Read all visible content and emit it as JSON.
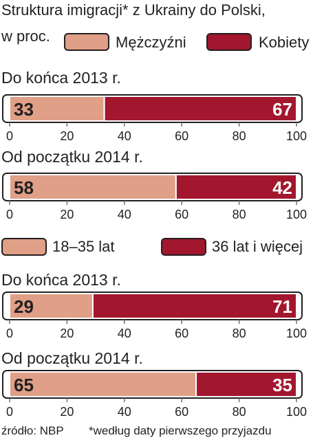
{
  "header": {
    "title_line1": "Struktura imigracji* z Ukrainy do Polski,",
    "title_line2": "w proc."
  },
  "colors": {
    "light": "#e09f87",
    "dark": "#a3172e",
    "ink": "#231f20",
    "axis": "#6d6e71"
  },
  "legends": [
    {
      "light_label": "Mężczyźni",
      "dark_label": "Kobiety"
    },
    {
      "light_label": "18–35 lat",
      "dark_label": "36 lat i więcej"
    }
  ],
  "chart_data": [
    {
      "type": "bar",
      "title": "Do końca 2013 r.",
      "stacked": true,
      "xlim": [
        0,
        100
      ],
      "x_ticks": [
        "0",
        "20",
        "40",
        "60",
        "80",
        "100"
      ],
      "series": [
        {
          "name": "Mężczyźni",
          "values": [
            33
          ]
        },
        {
          "name": "Kobiety",
          "values": [
            67
          ]
        }
      ]
    },
    {
      "type": "bar",
      "title": "Od początku 2014 r.",
      "stacked": true,
      "xlim": [
        0,
        100
      ],
      "x_ticks": [
        "0",
        "20",
        "40",
        "60",
        "80",
        "100"
      ],
      "series": [
        {
          "name": "Mężczyźni",
          "values": [
            58
          ]
        },
        {
          "name": "Kobiety",
          "values": [
            42
          ]
        }
      ]
    },
    {
      "type": "bar",
      "title": "Do końca 2013 r.",
      "stacked": true,
      "xlim": [
        0,
        100
      ],
      "x_ticks": [
        "0",
        "20",
        "40",
        "60",
        "80",
        "100"
      ],
      "series": [
        {
          "name": "18–35 lat",
          "values": [
            29
          ]
        },
        {
          "name": "36 lat i więcej",
          "values": [
            71
          ]
        }
      ]
    },
    {
      "type": "bar",
      "title": "Od początku 2014 r.",
      "stacked": true,
      "xlim": [
        0,
        100
      ],
      "x_ticks": [
        "0",
        "20",
        "40",
        "60",
        "80",
        "100"
      ],
      "series": [
        {
          "name": "18–35 lat",
          "values": [
            65
          ]
        },
        {
          "name": "36 lat i więcej",
          "values": [
            35
          ]
        }
      ]
    }
  ],
  "footer": {
    "source": "źródło: NBP",
    "note": "*według daty pierwszego przyjazdu"
  }
}
